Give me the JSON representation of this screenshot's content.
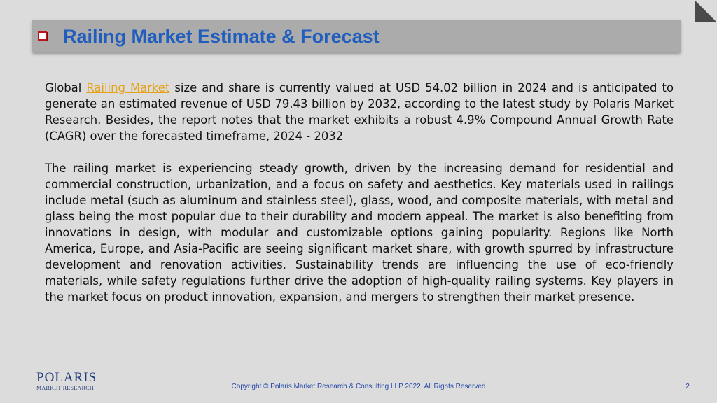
{
  "slide": {
    "title": "Railing Market Estimate & Forecast",
    "paragraph1": {
      "before_link": "Global ",
      "link_text": "Railing Market",
      "after_link": " size and share is currently valued at USD 54.02 billion in 2024 and is anticipated to generate an estimated revenue of USD 79.43 billion by 2032, according to the latest study by Polaris Market Research. Besides, the report notes that the market exhibits a robust 4.9% Compound Annual Growth Rate (CAGR) over the forecasted timeframe, 2024 - 2032"
    },
    "paragraph2": "The railing market is experiencing steady growth, driven by the increasing demand for residential and commercial construction, urbanization, and a focus on safety and aesthetics. Key materials used in railings include metal (such as aluminum and stainless steel), glass, wood, and composite materials, with metal and glass being the most popular due to their durability and modern appeal. The market is also benefiting from innovations in design, with modular and customizable options gaining popularity. Regions like North America, Europe, and Asia-Pacific are seeing significant market share, with growth spurred by infrastructure development and renovation activities. Sustainability trends are influencing the use of eco-friendly materials, while safety regulations further drive the adoption of high-quality railing systems. Key players in the market focus on product innovation, expansion, and mergers to strengthen their market presence."
  },
  "footer": {
    "logo_name": "POLARIS",
    "logo_subtitle": "MARKET RESEARCH",
    "copyright": "Copyright © Polaris Market Research & Consulting LLP 2022. All Rights Reserved",
    "page_number": "2"
  },
  "colors": {
    "title": "#1f5dbf",
    "link": "#e5a118",
    "title_bar": "#ababab",
    "bullet": "#c0141c"
  }
}
